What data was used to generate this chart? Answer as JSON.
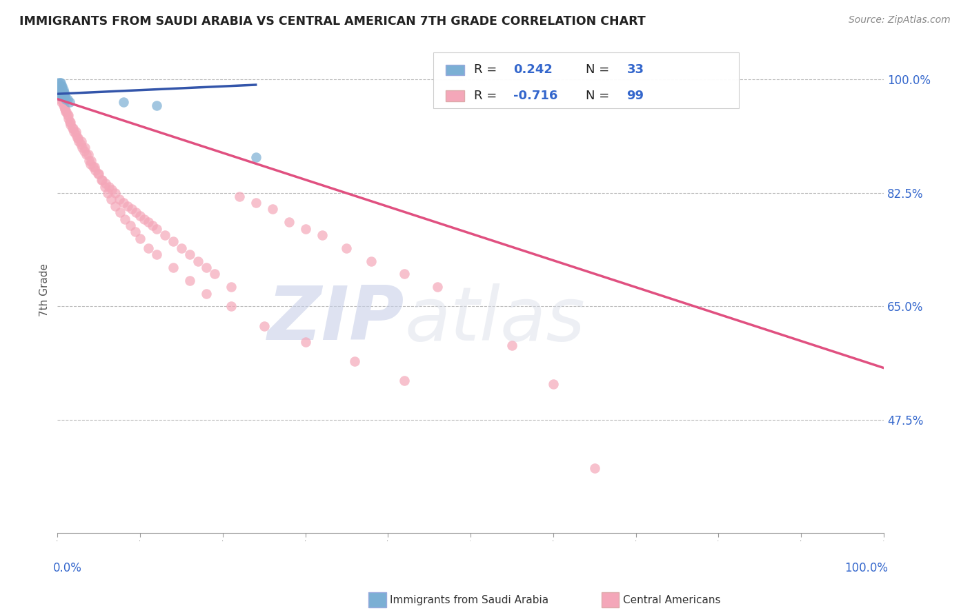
{
  "title": "IMMIGRANTS FROM SAUDI ARABIA VS CENTRAL AMERICAN 7TH GRADE CORRELATION CHART",
  "source_text": "Source: ZipAtlas.com",
  "ylabel": "7th Grade",
  "ytick_labels": [
    "100.0%",
    "82.5%",
    "65.0%",
    "47.5%"
  ],
  "ytick_values": [
    1.0,
    0.825,
    0.65,
    0.475
  ],
  "blue_color": "#7bafd4",
  "pink_color": "#f4a7b9",
  "blue_line_color": "#3355aa",
  "pink_line_color": "#e05080",
  "xlim": [
    0.0,
    1.0
  ],
  "ylim": [
    0.3,
    1.05
  ],
  "blue_scatter_x": [
    0.001,
    0.002,
    0.002,
    0.003,
    0.003,
    0.003,
    0.003,
    0.003,
    0.004,
    0.004,
    0.004,
    0.004,
    0.004,
    0.005,
    0.005,
    0.005,
    0.005,
    0.006,
    0.006,
    0.006,
    0.006,
    0.007,
    0.007,
    0.007,
    0.008,
    0.008,
    0.009,
    0.01,
    0.012,
    0.015,
    0.08,
    0.12,
    0.24
  ],
  "blue_scatter_y": [
    0.995,
    0.99,
    0.985,
    0.995,
    0.99,
    0.985,
    0.98,
    0.975,
    0.995,
    0.99,
    0.985,
    0.98,
    0.975,
    0.99,
    0.985,
    0.98,
    0.975,
    0.99,
    0.985,
    0.98,
    0.975,
    0.985,
    0.98,
    0.975,
    0.98,
    0.975,
    0.975,
    0.97,
    0.97,
    0.965,
    0.965,
    0.96,
    0.88
  ],
  "pink_scatter_x": [
    0.002,
    0.003,
    0.004,
    0.005,
    0.006,
    0.007,
    0.008,
    0.009,
    0.01,
    0.012,
    0.013,
    0.015,
    0.016,
    0.018,
    0.02,
    0.022,
    0.024,
    0.026,
    0.028,
    0.03,
    0.032,
    0.035,
    0.038,
    0.04,
    0.043,
    0.046,
    0.05,
    0.054,
    0.058,
    0.062,
    0.066,
    0.07,
    0.075,
    0.08,
    0.085,
    0.09,
    0.095,
    0.1,
    0.105,
    0.11,
    0.115,
    0.12,
    0.13,
    0.14,
    0.15,
    0.16,
    0.17,
    0.18,
    0.19,
    0.21,
    0.22,
    0.24,
    0.26,
    0.28,
    0.3,
    0.32,
    0.35,
    0.38,
    0.42,
    0.46,
    0.003,
    0.005,
    0.007,
    0.009,
    0.011,
    0.013,
    0.016,
    0.019,
    0.022,
    0.025,
    0.029,
    0.033,
    0.037,
    0.041,
    0.045,
    0.049,
    0.053,
    0.057,
    0.061,
    0.065,
    0.07,
    0.076,
    0.082,
    0.088,
    0.094,
    0.1,
    0.11,
    0.12,
    0.14,
    0.16,
    0.18,
    0.21,
    0.25,
    0.3,
    0.36,
    0.42,
    0.55,
    0.6,
    0.65
  ],
  "pink_scatter_y": [
    0.99,
    0.985,
    0.98,
    0.975,
    0.97,
    0.965,
    0.96,
    0.955,
    0.95,
    0.945,
    0.94,
    0.935,
    0.93,
    0.925,
    0.92,
    0.915,
    0.91,
    0.905,
    0.9,
    0.895,
    0.89,
    0.885,
    0.875,
    0.87,
    0.865,
    0.86,
    0.855,
    0.845,
    0.84,
    0.835,
    0.83,
    0.825,
    0.815,
    0.81,
    0.805,
    0.8,
    0.795,
    0.79,
    0.785,
    0.78,
    0.775,
    0.77,
    0.76,
    0.75,
    0.74,
    0.73,
    0.72,
    0.71,
    0.7,
    0.68,
    0.82,
    0.81,
    0.8,
    0.78,
    0.77,
    0.76,
    0.74,
    0.72,
    0.7,
    0.68,
    0.97,
    0.965,
    0.96,
    0.955,
    0.95,
    0.945,
    0.935,
    0.925,
    0.92,
    0.91,
    0.905,
    0.895,
    0.885,
    0.875,
    0.865,
    0.855,
    0.845,
    0.835,
    0.825,
    0.815,
    0.805,
    0.795,
    0.785,
    0.775,
    0.765,
    0.755,
    0.74,
    0.73,
    0.71,
    0.69,
    0.67,
    0.65,
    0.62,
    0.595,
    0.565,
    0.535,
    0.59,
    0.53,
    0.4
  ],
  "pink_trendline_x0": 0.0,
  "pink_trendline_x1": 1.0,
  "pink_trendline_y0": 0.97,
  "pink_trendline_y1": 0.555,
  "blue_trendline_x0": 0.0,
  "blue_trendline_x1": 0.24,
  "blue_trendline_y0": 0.978,
  "blue_trendline_y1": 0.992
}
